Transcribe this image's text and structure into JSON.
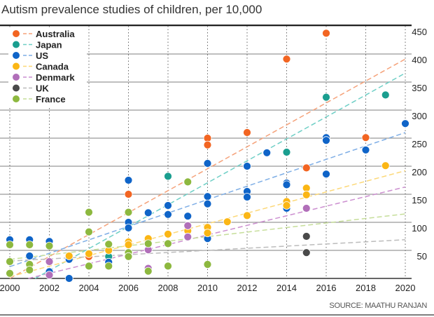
{
  "chart_data": {
    "type": "scatter",
    "title": "Autism prevalence studies of children, per 10,000",
    "source": "SOURCE: MAATHU RANJAN",
    "xlim": [
      2000,
      2020
    ],
    "ylim": [
      0,
      450
    ],
    "xticks": [
      "2000",
      "2002",
      "2004",
      "2006",
      "2008",
      "2010",
      "2012",
      "2014",
      "2016",
      "2018",
      "2020"
    ],
    "yticks": [
      "50",
      "100",
      "150",
      "200",
      "250",
      "300",
      "350",
      "400",
      "450"
    ],
    "grid": {
      "horizontal": "solid",
      "vertical": "dotted"
    },
    "legend_position": "top-left",
    "series": [
      {
        "name": "Australia",
        "color": "#f26522",
        "trend_color": "#f5a27a",
        "trend": [
          [
            2000,
            0
          ],
          [
            2020,
            391
          ]
        ],
        "points": [
          [
            2004,
            39
          ],
          [
            2006,
            150
          ],
          [
            2010,
            250
          ],
          [
            2010,
            238
          ],
          [
            2012,
            260
          ],
          [
            2014,
            391
          ],
          [
            2015,
            197
          ],
          [
            2016,
            437
          ],
          [
            2018,
            251
          ]
        ]
      },
      {
        "name": "Japan",
        "color": "#1a9e8f",
        "trend_color": "#6fcfc6",
        "trend": [
          [
            2000,
            -25
          ],
          [
            2020,
            366
          ]
        ],
        "points": [
          [
            2005,
            39
          ],
          [
            2008,
            182
          ],
          [
            2014,
            225
          ],
          [
            2016,
            323
          ],
          [
            2019,
            327
          ]
        ]
      },
      {
        "name": "US",
        "color": "#0f64c8",
        "trend_color": "#7eaee6",
        "trend": [
          [
            2000,
            21
          ],
          [
            2020,
            260
          ]
        ],
        "points": [
          [
            2000,
            69
          ],
          [
            2001,
            69
          ],
          [
            2001,
            40
          ],
          [
            2002,
            66
          ],
          [
            2002,
            12
          ],
          [
            2003,
            34
          ],
          [
            2003,
            0
          ],
          [
            2005,
            29
          ],
          [
            2006,
            175
          ],
          [
            2006,
            100
          ],
          [
            2006,
            90
          ],
          [
            2007,
            117
          ],
          [
            2008,
            130
          ],
          [
            2008,
            114
          ],
          [
            2008,
            62
          ],
          [
            2009,
            111
          ],
          [
            2010,
            205
          ],
          [
            2010,
            146
          ],
          [
            2010,
            133
          ],
          [
            2010,
            71
          ],
          [
            2012,
            200
          ],
          [
            2012,
            155
          ],
          [
            2012,
            145
          ],
          [
            2013,
            224
          ],
          [
            2014,
            170
          ],
          [
            2014,
            167
          ],
          [
            2014,
            125
          ],
          [
            2016,
            251
          ],
          [
            2016,
            246
          ],
          [
            2016,
            186
          ],
          [
            2018,
            229
          ],
          [
            2020,
            276
          ]
        ]
      },
      {
        "name": "Canada",
        "color": "#fbb615",
        "trend_color": "#fcd877",
        "trend": [
          [
            2000,
            3
          ],
          [
            2020,
            192
          ]
        ],
        "points": [
          [
            2003,
            40
          ],
          [
            2004,
            44
          ],
          [
            2005,
            50
          ],
          [
            2006,
            65
          ],
          [
            2006,
            60
          ],
          [
            2007,
            71
          ],
          [
            2008,
            79
          ],
          [
            2009,
            85
          ],
          [
            2010,
            91
          ],
          [
            2010,
            81
          ],
          [
            2011,
            101
          ],
          [
            2012,
            112
          ],
          [
            2014,
            137
          ],
          [
            2014,
            130
          ],
          [
            2015,
            161
          ],
          [
            2015,
            149
          ],
          [
            2019,
            201
          ]
        ]
      },
      {
        "name": "Denmark",
        "color": "#b16fb9",
        "trend_color": "#cc8fd0",
        "trend": [
          [
            2000,
            -8
          ],
          [
            2020,
            163
          ]
        ],
        "points": [
          [
            2002,
            30
          ],
          [
            2002,
            6
          ],
          [
            2007,
            51
          ],
          [
            2007,
            18
          ],
          [
            2009,
            94
          ],
          [
            2009,
            74
          ],
          [
            2015,
            125
          ]
        ]
      },
      {
        "name": "UK",
        "color": "#4a4a4a",
        "trend_color": "#bcbcbc",
        "trend": [
          [
            2000,
            31
          ],
          [
            2020,
            69
          ]
        ],
        "points": [
          [
            2015,
            75
          ],
          [
            2015,
            46
          ]
        ]
      },
      {
        "name": "France",
        "color": "#8db83f",
        "trend_color": "#c6de9a",
        "trend": [
          [
            2000,
            34
          ],
          [
            2020,
            115
          ]
        ],
        "points": [
          [
            2000,
            60
          ],
          [
            2000,
            30
          ],
          [
            2000,
            9
          ],
          [
            2001,
            60
          ],
          [
            2001,
            25
          ],
          [
            2001,
            15
          ],
          [
            2002,
            58
          ],
          [
            2004,
            118
          ],
          [
            2004,
            83
          ],
          [
            2004,
            22
          ],
          [
            2005,
            61
          ],
          [
            2005,
            22
          ],
          [
            2006,
            118
          ],
          [
            2006,
            46
          ],
          [
            2006,
            39
          ],
          [
            2007,
            62
          ],
          [
            2007,
            13
          ],
          [
            2008,
            62
          ],
          [
            2008,
            22
          ],
          [
            2009,
            172
          ],
          [
            2010,
            25
          ]
        ]
      }
    ]
  }
}
